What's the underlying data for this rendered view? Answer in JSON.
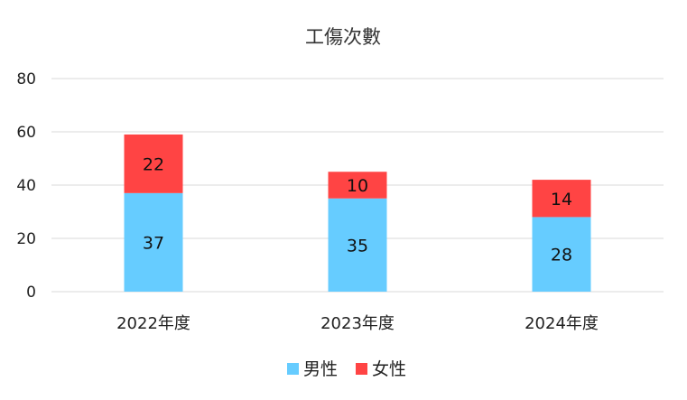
{
  "chart_data": {
    "type": "bar",
    "stacked": true,
    "title": "工傷次數",
    "categories": [
      "2022年度",
      "2023年度",
      "2024年度"
    ],
    "series": [
      {
        "name": "男性",
        "values": [
          37,
          35,
          28
        ],
        "color": "#66ccff"
      },
      {
        "name": "女性",
        "values": [
          22,
          10,
          14
        ],
        "color": "#ff4444"
      }
    ],
    "ylim": [
      0,
      80
    ],
    "yticks": [
      0,
      20,
      40,
      60,
      80
    ],
    "grid": true,
    "legend": "bottom",
    "data_labels": true
  }
}
